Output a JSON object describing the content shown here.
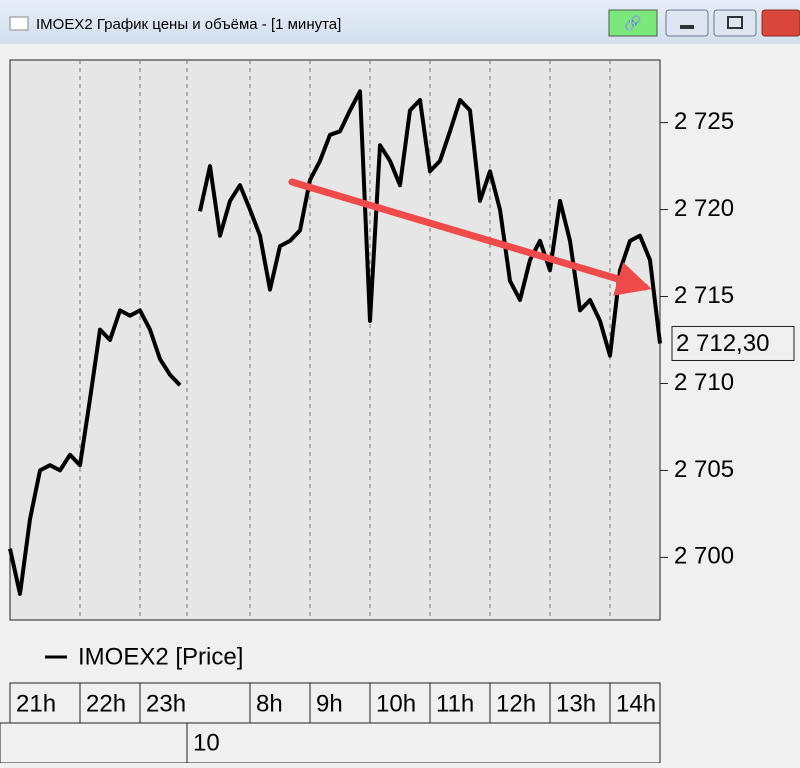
{
  "window_title": "IMOEX2 График цены и объёма - [1 минута]",
  "chart_data": {
    "type": "line",
    "legend": "IMOEX2 [Price]",
    "categories": [
      "21h",
      null,
      null,
      null,
      null,
      null,
      null,
      "22h",
      null,
      null,
      null,
      null,
      null,
      "23h",
      null,
      null,
      null,
      null,
      null,
      null,
      null,
      null,
      null,
      null,
      "8h",
      null,
      null,
      null,
      null,
      null,
      "9h",
      null,
      null,
      null,
      null,
      null,
      "10h",
      null,
      null,
      null,
      null,
      null,
      "11h",
      null,
      null,
      null,
      null,
      null,
      "12h",
      null,
      null,
      null,
      null,
      null,
      "13h",
      null,
      null,
      null,
      null,
      null,
      "14h",
      null,
      null,
      null,
      null,
      null
    ],
    "day_label": "10",
    "series": [
      {
        "name": "IMOEX2 [Price]",
        "color": "#000000",
        "values": [
          2700.5,
          2697.9,
          2702.2,
          2705.0,
          2705.3,
          2705.0,
          2705.9,
          2705.3,
          2709.1,
          2713.1,
          2712.5,
          2714.2,
          2713.9,
          2714.2,
          2713.1,
          2711.4,
          2710.5,
          2709.9,
          null,
          2719.9,
          2722.5,
          2718.5,
          2720.5,
          2721.4,
          2720.0,
          2718.5,
          2715.4,
          2717.9,
          2718.2,
          2718.8,
          2721.7,
          2722.8,
          2724.3,
          2724.5,
          2725.7,
          2726.8,
          2713.6,
          2723.7,
          2722.8,
          2721.4,
          2725.7,
          2726.3,
          2722.2,
          2722.8,
          2724.5,
          2726.3,
          2725.7,
          2720.5,
          2722.2,
          2720.0,
          2715.9,
          2714.8,
          2717.1,
          2718.2,
          2716.5,
          2720.5,
          2718.2,
          2714.2,
          2714.8,
          2713.6,
          2711.6,
          2716.5,
          2718.2,
          2718.5,
          2717.1,
          2712.3
        ]
      }
    ],
    "last_price": {
      "value": 2712.3,
      "label": "2 712,30"
    },
    "ylim": [
      2696.4,
      2728.6
    ],
    "yticks": [
      {
        "value": 2700,
        "label": "2 700"
      },
      {
        "value": 2705,
        "label": "2 705"
      },
      {
        "value": 2710,
        "label": "2 710"
      },
      {
        "value": 2715,
        "label": "2 715"
      },
      {
        "value": 2720,
        "label": "2 720"
      },
      {
        "value": 2725,
        "label": "2 725"
      }
    ],
    "grid": true
  }
}
